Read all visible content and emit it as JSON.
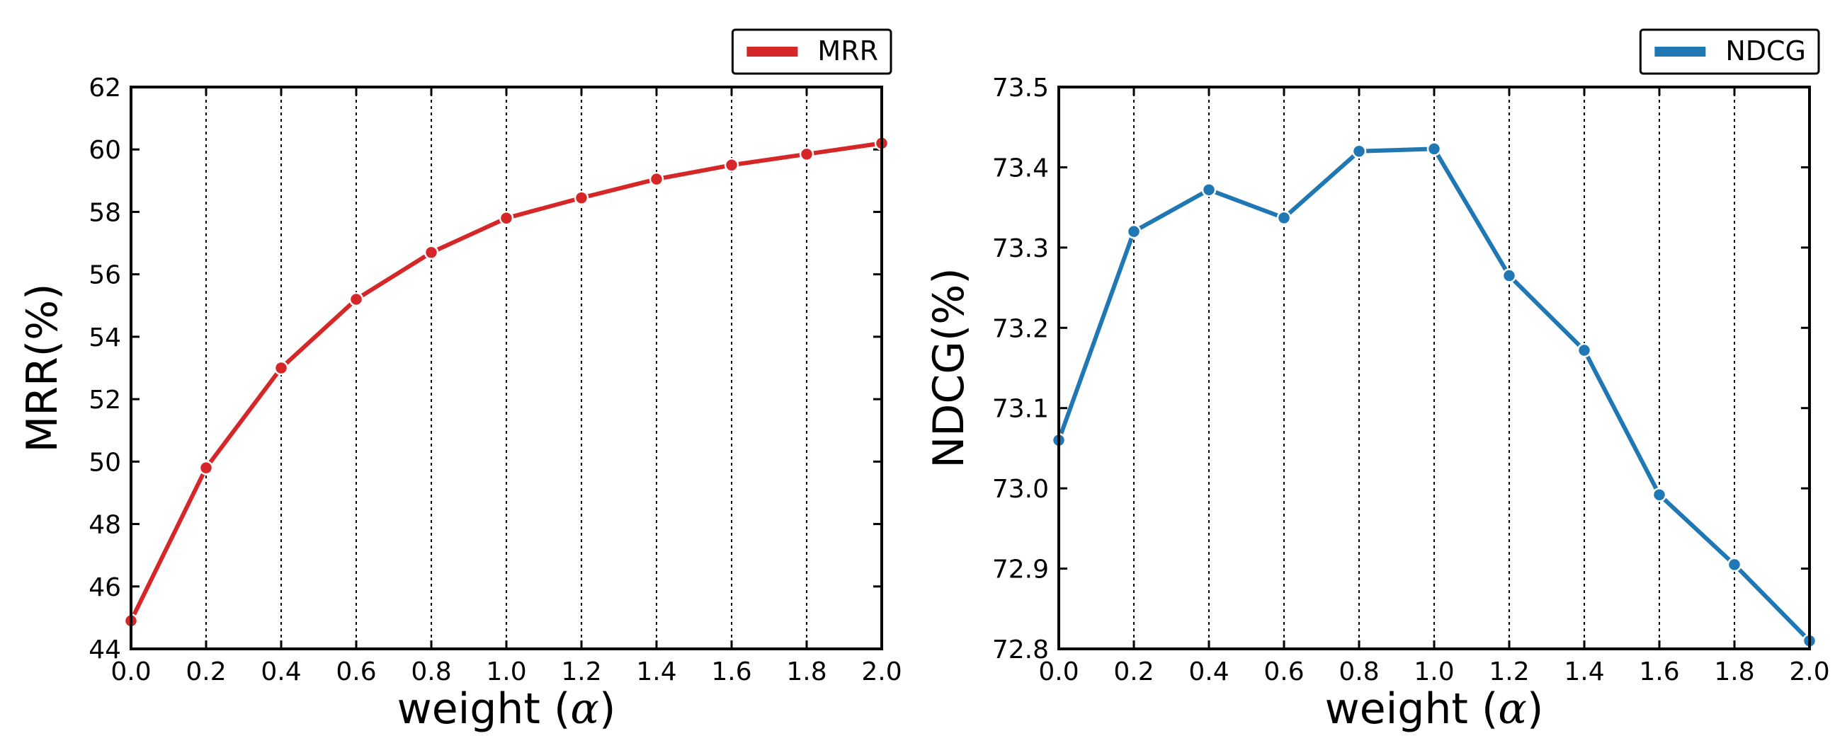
{
  "chart_data": [
    {
      "type": "line",
      "title": "",
      "xlabel_text": "weight (",
      "xlabel_symbol": "α",
      "xlabel_close": ")",
      "ylabel": "MRR(%)",
      "xlim": [
        0.0,
        2.0
      ],
      "ylim": [
        44,
        62
      ],
      "xticks": [
        "0.0",
        "0.2",
        "0.4",
        "0.6",
        "0.8",
        "1.0",
        "1.2",
        "1.4",
        "1.6",
        "1.8",
        "2.0"
      ],
      "yticks": [
        "44",
        "46",
        "48",
        "50",
        "52",
        "54",
        "56",
        "58",
        "60",
        "62"
      ],
      "grid": "vertical-dotted",
      "legend": "top-right",
      "series": [
        {
          "name": "MRR",
          "color": "#d62728",
          "x": [
            0.0,
            0.2,
            0.4,
            0.6,
            0.8,
            1.0,
            1.2,
            1.4,
            1.6,
            1.8,
            2.0
          ],
          "y": [
            44.9,
            49.8,
            53.0,
            55.2,
            56.7,
            57.8,
            58.45,
            59.05,
            59.5,
            59.85,
            60.2
          ]
        }
      ]
    },
    {
      "type": "line",
      "title": "",
      "xlabel_text": "weight (",
      "xlabel_symbol": "α",
      "xlabel_close": ")",
      "ylabel": "NDCG(%)",
      "xlim": [
        0.0,
        2.0
      ],
      "ylim": [
        72.8,
        73.5
      ],
      "xticks": [
        "0.0",
        "0.2",
        "0.4",
        "0.6",
        "0.8",
        "1.0",
        "1.2",
        "1.4",
        "1.6",
        "1.8",
        "2.0"
      ],
      "yticks": [
        "72.8",
        "72.9",
        "73.0",
        "73.1",
        "73.2",
        "73.3",
        "73.4",
        "73.5"
      ],
      "grid": "vertical-dotted",
      "legend": "top-right",
      "series": [
        {
          "name": "NDCG",
          "color": "#1f77b4",
          "x": [
            0.0,
            0.2,
            0.4,
            0.6,
            0.8,
            1.0,
            1.2,
            1.4,
            1.6,
            1.8,
            2.0
          ],
          "y": [
            73.06,
            73.32,
            73.372,
            73.337,
            73.42,
            73.423,
            73.265,
            73.172,
            72.992,
            72.905,
            72.81
          ]
        }
      ]
    }
  ]
}
